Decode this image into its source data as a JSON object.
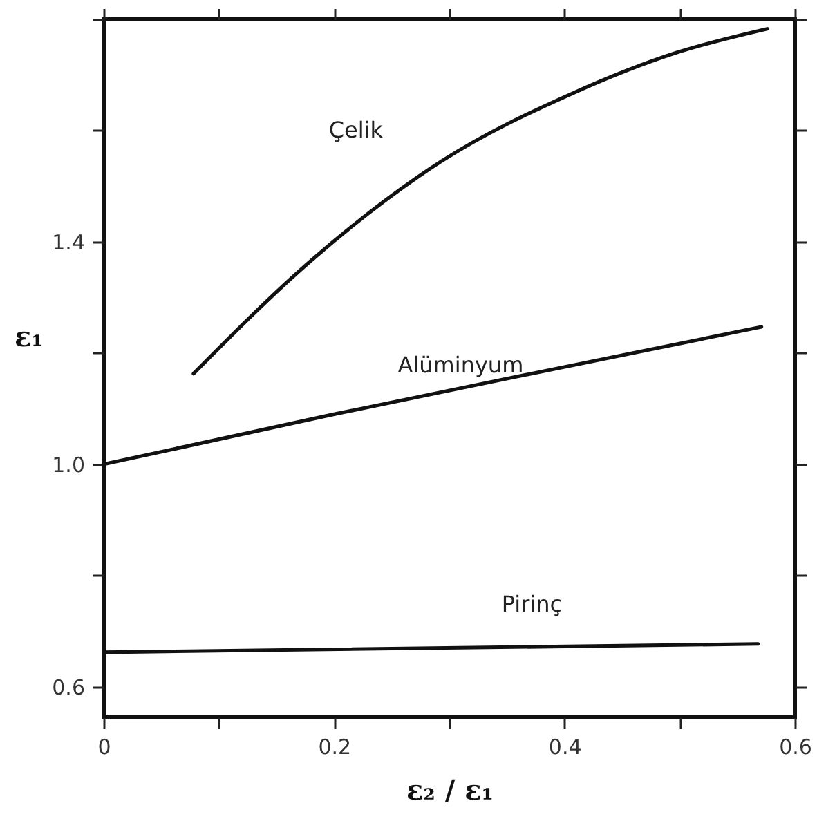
{
  "chart_data": {
    "type": "line",
    "xlabel": "ε₂ / ε₁",
    "ylabel": "ε₁",
    "xlim": [
      0,
      0.6
    ],
    "ylim": [
      0.545,
      1.8
    ],
    "xticks": [
      0,
      {
        "value": 0.1,
        "label": null
      },
      0.2,
      {
        "value": 0.3,
        "label": null
      },
      0.4,
      {
        "value": 0.5,
        "label": null
      },
      0.6
    ],
    "yticks": [
      0.6,
      {
        "value": 0.8,
        "label": null
      },
      {
        "value": 1.0,
        "label": "1.0"
      },
      {
        "value": 1.2,
        "label": null
      },
      1.4,
      {
        "value": 1.6,
        "label": null
      },
      {
        "value": 1.8,
        "label": null
      }
    ],
    "marker": "none",
    "line_style": "solid",
    "series": [
      {
        "name": "Çelik",
        "color": "#111111",
        "x": [
          0.078,
          0.181,
          0.294,
          0.407,
          0.497,
          0.576
        ],
        "values": [
          1.163,
          1.368,
          1.546,
          1.667,
          1.74,
          1.783
        ]
      },
      {
        "name": "Alüminyum",
        "color": "#111111",
        "x": [
          0,
          0.2,
          0.4,
          0.571
        ],
        "values": [
          1.0,
          1.09,
          1.175,
          1.247
        ]
      },
      {
        "name": "Pirinç",
        "color": "#111111",
        "x": [
          0,
          0.568
        ],
        "values": [
          0.662,
          0.677
        ]
      }
    ]
  }
}
